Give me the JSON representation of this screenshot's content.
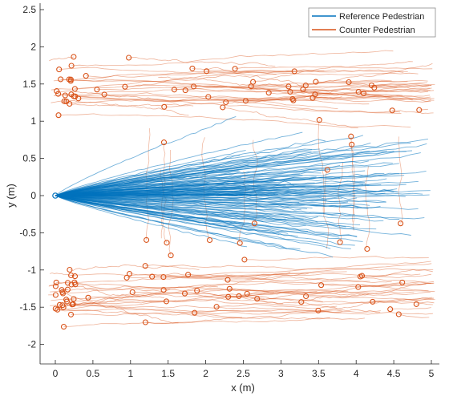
{
  "chart_data": {
    "type": "line",
    "xlabel": "x (m)",
    "ylabel": "y (m)",
    "xlim": [
      -0.2,
      5.05
    ],
    "ylim": [
      -2.2,
      2.6
    ],
    "x_ticks": [
      "0",
      "0.5",
      "1",
      "1.5",
      "2",
      "2.5",
      "3",
      "3.5",
      "4",
      "4.5",
      "5"
    ],
    "y_ticks": [
      "2.5",
      "2",
      "1.5",
      "1",
      "0.5",
      "0",
      "-0.5",
      "-1",
      "-1.5",
      "-2"
    ],
    "legend_placement": "top-right",
    "grid": false,
    "reference_start": [
      0,
      0
    ],
    "reference_end_y_range": [
      -2.0,
      2.0
    ],
    "series": [
      {
        "name": "Reference Pedestrian",
        "color": "#0072BD",
        "style": "fan of trajectories from (0,0) spreading rightward"
      },
      {
        "name": "Counter Pedestrian",
        "color": "#D95319",
        "style": "trajectories starting at circles, bands near y=1.5 and y=-1.3"
      }
    ]
  }
}
